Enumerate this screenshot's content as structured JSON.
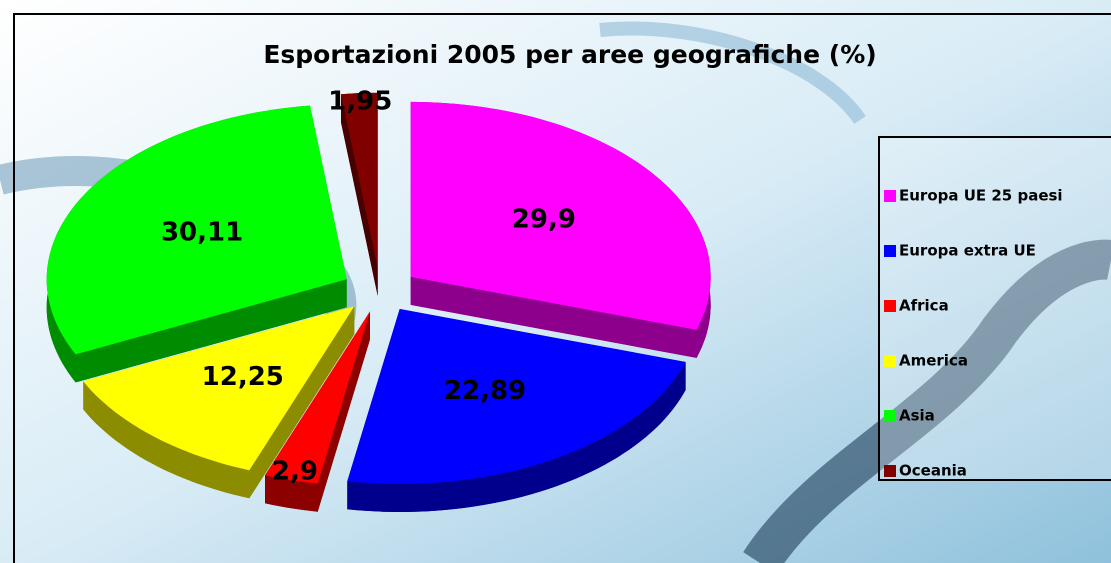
{
  "chart_data": {
    "type": "pie",
    "title": "Esportazioni 2005 per aree geografiche (%)",
    "categories": [
      "Europa UE 25 paesi",
      "Europa extra UE",
      "Africa",
      "America",
      "Asia",
      "Oceania"
    ],
    "values": [
      29.9,
      22.89,
      2.9,
      12.25,
      30.11,
      1.95
    ],
    "value_labels": [
      "29,9",
      "22,89",
      "2,9",
      "12,25",
      "30,11",
      "1,95"
    ],
    "colors": [
      "#ff00ff",
      "#0000ff",
      "#ff0000",
      "#ffff00",
      "#00ff00",
      "#800000"
    ],
    "legend": "right"
  }
}
